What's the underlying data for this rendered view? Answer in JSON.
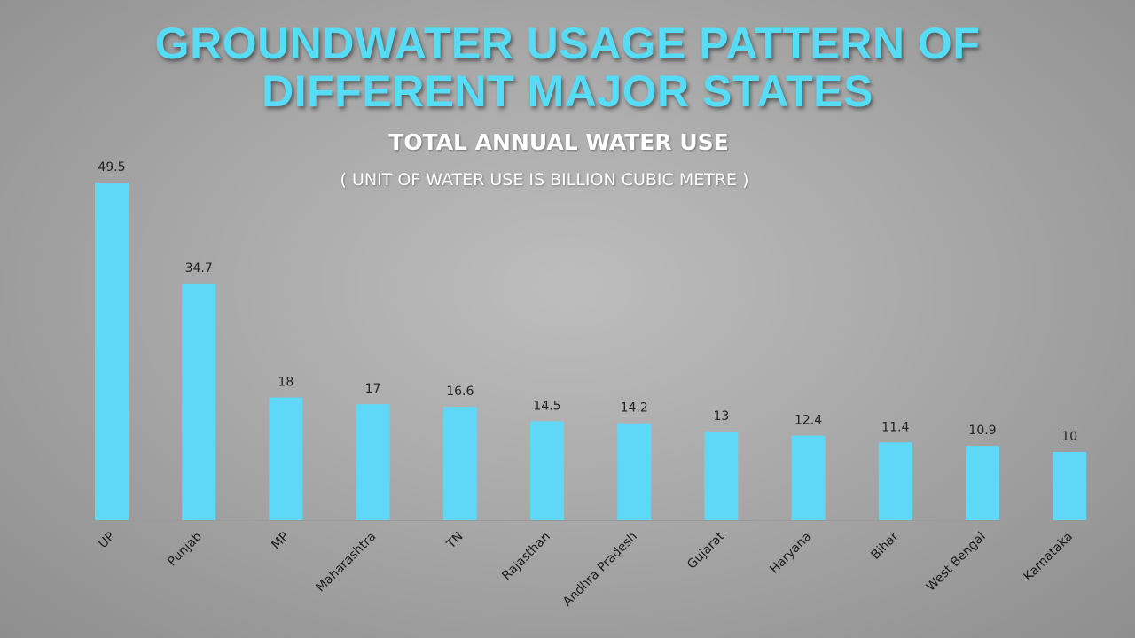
{
  "header": {
    "title_line1": "GROUNDWATER USAGE PATTERN OF",
    "title_line2": "DIFFERENT MAJOR STATES",
    "subtitle": "TOTAL ANNUAL WATER USE",
    "unit_note": "( UNIT OF WATER USE IS BILLION CUBIC METRE )"
  },
  "colors": {
    "bar": "#5fd7f7",
    "title": "#56dcf4"
  },
  "chart_data": {
    "type": "bar",
    "title": "",
    "xlabel": "",
    "ylabel": "",
    "ylim": [
      0,
      49.5
    ],
    "grid": false,
    "categories": [
      "UP",
      "Punjab",
      "MP",
      "Maharashtra",
      "TN",
      "Rajasthan",
      "Andhra Pradesh",
      "Gujarat",
      "Haryana",
      "Bihar",
      "West Bengal",
      "Karnataka"
    ],
    "values": [
      49.5,
      34.7,
      18,
      17,
      16.6,
      14.5,
      14.2,
      13,
      12.4,
      11.4,
      10.9,
      10
    ],
    "value_labels": [
      "49.5",
      "34.7",
      "18",
      "17",
      "16.6",
      "14.5",
      "14.2",
      "13",
      "12.4",
      "11.4",
      "10.9",
      "10"
    ]
  }
}
